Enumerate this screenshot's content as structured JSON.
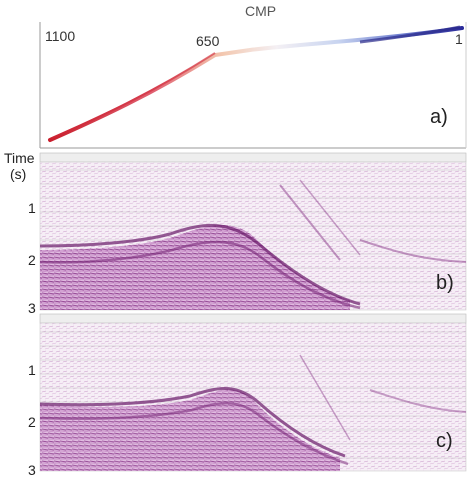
{
  "figure": {
    "title": "CMP",
    "time_axis_label": "Time",
    "time_axis_unit": "(s)",
    "panels": [
      {
        "letter": "a)",
        "description_hidden": true
      },
      {
        "letter": "b)",
        "time_ticks": [
          "1",
          "2",
          "3"
        ]
      },
      {
        "letter": "c)",
        "time_ticks": [
          "1",
          "2",
          "3"
        ]
      }
    ],
    "cmp_markers": [
      "1100",
      "650",
      "1"
    ],
    "colors": {
      "curve_start": "#cc2030",
      "curve_mid": "#f0e0e8",
      "curve_end": "#3030a0",
      "seismic": "#8a2a8a",
      "axis": "#888888"
    }
  }
}
